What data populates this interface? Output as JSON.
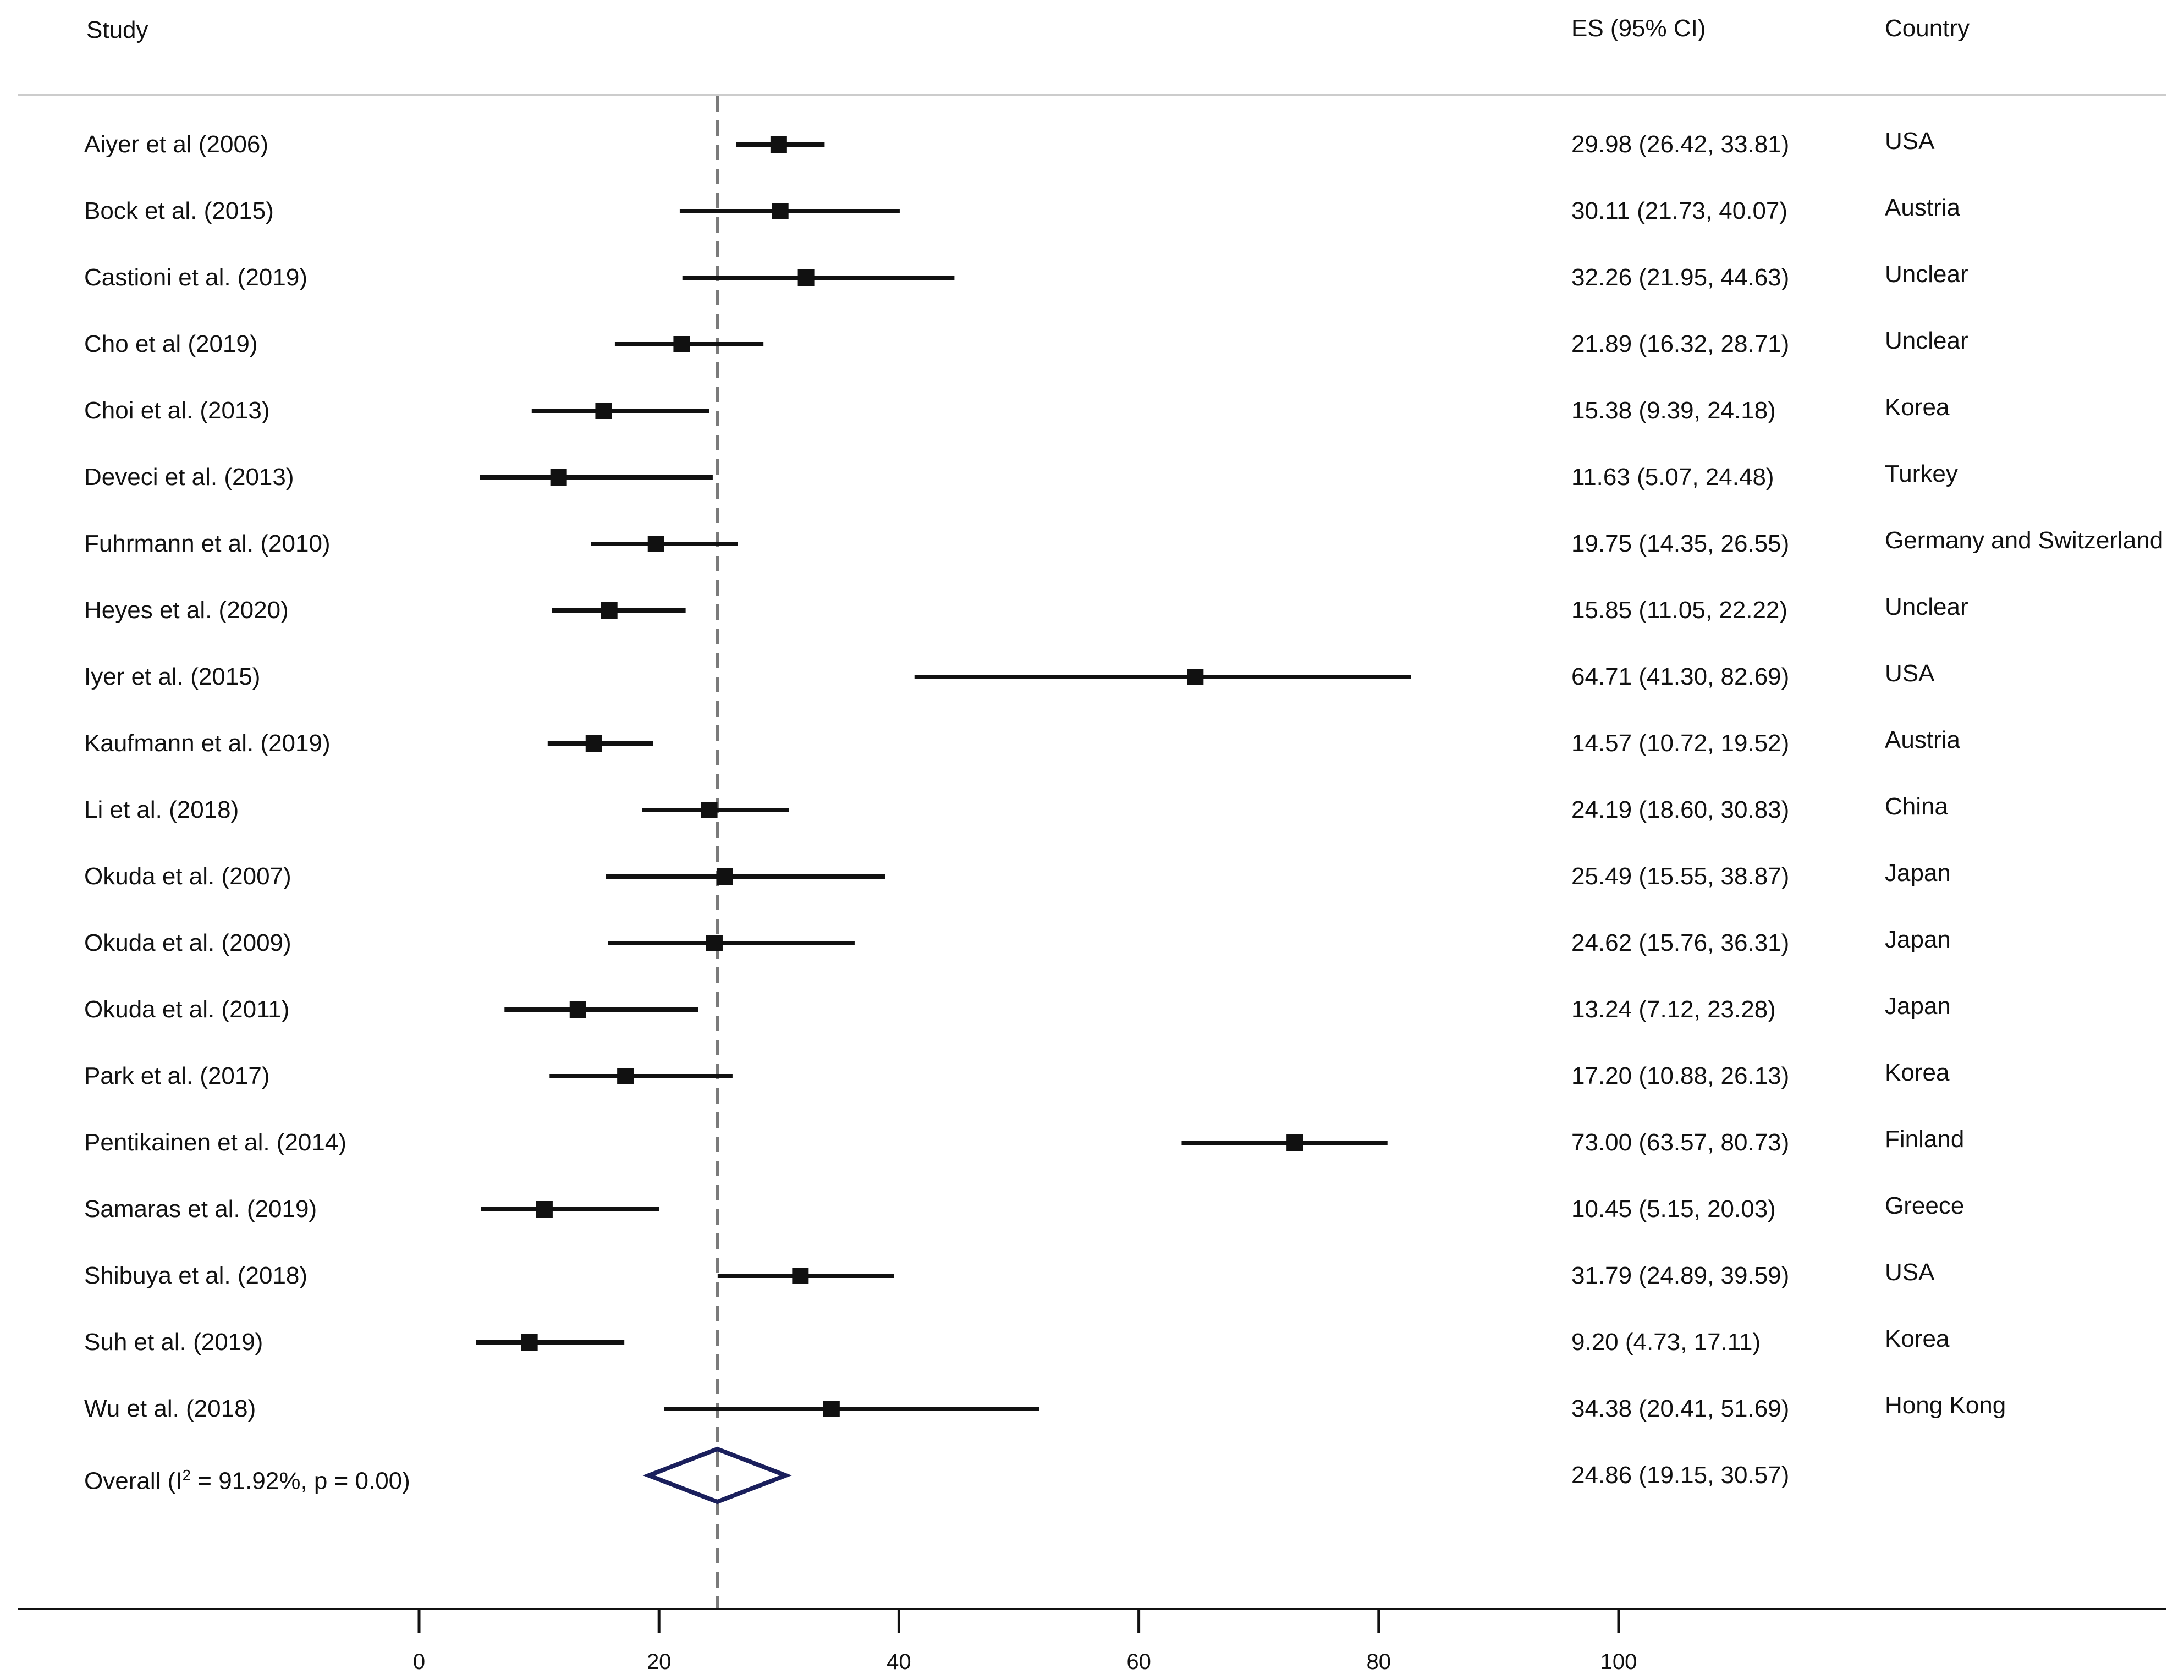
{
  "chart_data": {
    "type": "forest",
    "headers": {
      "study": "Study",
      "es": "ES (95%  CI)",
      "country": "Country"
    },
    "reference_line": 24.86,
    "xlim": [
      0,
      100
    ],
    "xticks": [
      0,
      20,
      40,
      60,
      80,
      100
    ],
    "xtick_labels": [
      "0",
      "20",
      "40",
      "60",
      "80",
      "100"
    ],
    "studies": [
      {
        "name": "Aiyer et al (2006)",
        "es": 29.98,
        "lo": 26.42,
        "hi": 33.81,
        "es_text": "29.98 (26.42, 33.81)",
        "country": "USA"
      },
      {
        "name": "Bock et al. (2015)",
        "es": 30.11,
        "lo": 21.73,
        "hi": 40.07,
        "es_text": "30.11 (21.73, 40.07)",
        "country": "Austria"
      },
      {
        "name": "Castioni et al. (2019)",
        "es": 32.26,
        "lo": 21.95,
        "hi": 44.63,
        "es_text": "32.26 (21.95, 44.63)",
        "country": "Unclear"
      },
      {
        "name": "Cho et al (2019)",
        "es": 21.89,
        "lo": 16.32,
        "hi": 28.71,
        "es_text": "21.89 (16.32, 28.71)",
        "country": "Unclear"
      },
      {
        "name": "Choi et al. (2013)",
        "es": 15.38,
        "lo": 9.39,
        "hi": 24.18,
        "es_text": "15.38 (9.39, 24.18)",
        "country": "Korea"
      },
      {
        "name": "Deveci et al. (2013)",
        "es": 11.63,
        "lo": 5.07,
        "hi": 24.48,
        "es_text": "11.63 (5.07, 24.48)",
        "country": "Turkey"
      },
      {
        "name": "Fuhrmann et al. (2010)",
        "es": 19.75,
        "lo": 14.35,
        "hi": 26.55,
        "es_text": "19.75 (14.35, 26.55)",
        "country": "Germany and Switzerland"
      },
      {
        "name": "Heyes et al. (2020)",
        "es": 15.85,
        "lo": 11.05,
        "hi": 22.22,
        "es_text": "15.85 (11.05, 22.22)",
        "country": "Unclear"
      },
      {
        "name": "Iyer et al. (2015)",
        "es": 64.71,
        "lo": 41.3,
        "hi": 82.69,
        "es_text": "64.71 (41.30, 82.69)",
        "country": "USA"
      },
      {
        "name": "Kaufmann et al. (2019)",
        "es": 14.57,
        "lo": 10.72,
        "hi": 19.52,
        "es_text": "14.57 (10.72, 19.52)",
        "country": "Austria"
      },
      {
        "name": "Li et al. (2018)",
        "es": 24.19,
        "lo": 18.6,
        "hi": 30.83,
        "es_text": "24.19 (18.60, 30.83)",
        "country": "China"
      },
      {
        "name": "Okuda et al. (2007)",
        "es": 25.49,
        "lo": 15.55,
        "hi": 38.87,
        "es_text": "25.49 (15.55, 38.87)",
        "country": "Japan"
      },
      {
        "name": "Okuda et al. (2009)",
        "es": 24.62,
        "lo": 15.76,
        "hi": 36.31,
        "es_text": "24.62 (15.76, 36.31)",
        "country": "Japan"
      },
      {
        "name": "Okuda et al. (2011)",
        "es": 13.24,
        "lo": 7.12,
        "hi": 23.28,
        "es_text": "13.24 (7.12, 23.28)",
        "country": "Japan"
      },
      {
        "name": "Park et al. (2017)",
        "es": 17.2,
        "lo": 10.88,
        "hi": 26.13,
        "es_text": "17.20 (10.88, 26.13)",
        "country": "Korea"
      },
      {
        "name": "Pentikainen et al. (2014)",
        "es": 73.0,
        "lo": 63.57,
        "hi": 80.73,
        "es_text": "73.00 (63.57, 80.73)",
        "country": "Finland"
      },
      {
        "name": "Samaras et al. (2019)",
        "es": 10.45,
        "lo": 5.15,
        "hi": 20.03,
        "es_text": "10.45 (5.15, 20.03)",
        "country": "Greece"
      },
      {
        "name": "Shibuya et al. (2018)",
        "es": 31.79,
        "lo": 24.89,
        "hi": 39.59,
        "es_text": "31.79 (24.89, 39.59)",
        "country": "USA"
      },
      {
        "name": "Suh et al. (2019)",
        "es": 9.2,
        "lo": 4.73,
        "hi": 17.11,
        "es_text": "9.20 (4.73, 17.11)",
        "country": "Korea"
      },
      {
        "name": "Wu et al. (2018)",
        "es": 34.38,
        "lo": 20.41,
        "hi": 51.69,
        "es_text": "34.38 (20.41, 51.69)",
        "country": "Hong Kong"
      }
    ],
    "overall": {
      "label_prefix": "Overall  (I",
      "label_sup": "2",
      "label_suffix": " = 91.92%, p = 0.00)",
      "es": 24.86,
      "lo": 19.15,
      "hi": 30.57,
      "es_text": "24.86 (19.15, 30.57)"
    },
    "colors": {
      "marker": "#111111",
      "ci_line": "#111111",
      "diamond": "#1a1f5c",
      "ref_line": "#7a7a7a",
      "divider": "#cccccc",
      "axis": "#111111"
    }
  }
}
